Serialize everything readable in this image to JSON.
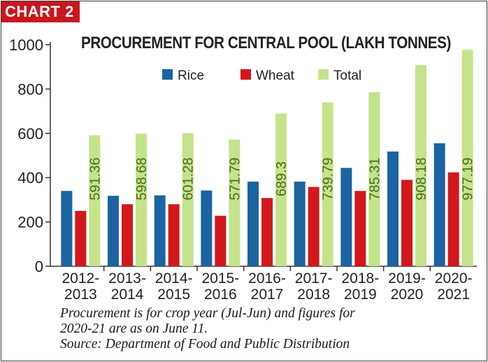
{
  "badge": "CHART 2",
  "footnote": {
    "line1": "Procurement is for crop year (Jul-Jun) and figures for",
    "line2": "2020-21 are as on June 11.",
    "line3": "Source: Department of Food and Public Distribution"
  },
  "colors": {
    "rice": "#1b63a1",
    "wheat": "#d2181b",
    "total": "#c5e38b",
    "badge": "#c8181e"
  },
  "chart_data": {
    "type": "bar",
    "title": "PROCUREMENT FOR CENTRAL POOL (LAKH TONNES)",
    "categories": [
      [
        "2012-",
        "2013"
      ],
      [
        "2013-",
        "2014"
      ],
      [
        "2014-",
        "2015"
      ],
      [
        "2015-",
        "2016"
      ],
      [
        "2016-",
        "2017"
      ],
      [
        "2017-",
        "2018"
      ],
      [
        "2018-",
        "2019"
      ],
      [
        "2019-",
        "2020"
      ],
      [
        "2020-",
        "2021"
      ]
    ],
    "series": [
      {
        "name": "Rice",
        "color": "#1b63a1",
        "values": [
          340,
          318,
          320,
          342,
          382,
          382,
          444,
          518,
          555
        ]
      },
      {
        "name": "Wheat",
        "color": "#d2181b",
        "values": [
          250,
          280,
          280,
          228,
          308,
          358,
          340,
          390,
          424
        ]
      },
      {
        "name": "Total",
        "color": "#c5e38b",
        "values": [
          591.36,
          598.68,
          601.28,
          571.79,
          689.3,
          739.79,
          785.31,
          908.18,
          977.19
        ]
      }
    ],
    "total_labels": [
      "591.36",
      "598.68",
      "601.28",
      "571.79",
      "689.3",
      "739.79",
      "785.31",
      "908.18",
      "977.19"
    ],
    "yticks": [
      "0",
      "200",
      "400",
      "600",
      "800",
      "1000"
    ],
    "ylim": [
      0,
      1000
    ],
    "xlabel": "",
    "ylabel": "",
    "grid": false,
    "legend": "top-center"
  }
}
